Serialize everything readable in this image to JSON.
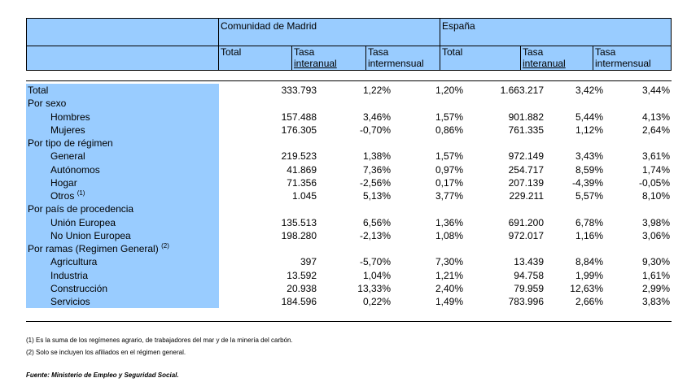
{
  "header": {
    "madrid": "Comunidad de Madrid",
    "espana": "España",
    "cols": {
      "total": "Total",
      "tasa": "Tasa",
      "interanual": "interanual",
      "intermensual": "intermensual"
    }
  },
  "rows": [
    {
      "label": "Total",
      "sub": false,
      "vals": [
        "333.793",
        "1,22%",
        "1,20%",
        "1.663.217",
        "3,42%",
        "3,44%"
      ]
    },
    {
      "label": "Por sexo",
      "sub": false,
      "vals": [
        "",
        "",
        "",
        "",
        "",
        ""
      ]
    },
    {
      "label": "Hombres",
      "sub": true,
      "vals": [
        "157.488",
        "3,46%",
        "1,57%",
        "901.882",
        "5,44%",
        "4,13%"
      ]
    },
    {
      "label": "Mujeres",
      "sub": true,
      "vals": [
        "176.305",
        "-0,70%",
        "0,86%",
        "761.335",
        "1,12%",
        "2,64%"
      ]
    },
    {
      "label": "Por tipo de régimen",
      "sub": false,
      "vals": [
        "",
        "",
        "",
        "",
        "",
        ""
      ]
    },
    {
      "label": "General",
      "sub": true,
      "vals": [
        "219.523",
        "1,38%",
        "1,57%",
        "972.149",
        "3,43%",
        "3,61%"
      ]
    },
    {
      "label": "Autónomos",
      "sub": true,
      "vals": [
        "41.869",
        "7,36%",
        "0,97%",
        "254.717",
        "8,59%",
        "1,74%"
      ]
    },
    {
      "label": "Hogar",
      "sub": true,
      "vals": [
        "71.356",
        "-2,56%",
        "0,17%",
        "207.139",
        "-4,39%",
        "-0,05%"
      ]
    },
    {
      "label": "Otros",
      "sup": "(1)",
      "sub": true,
      "vals": [
        "1.045",
        "5,13%",
        "3,77%",
        "229.211",
        "5,57%",
        "8,10%"
      ]
    },
    {
      "label": "Por país de procedencia",
      "sub": false,
      "vals": [
        "",
        "",
        "",
        "",
        "",
        ""
      ]
    },
    {
      "label": "Unión Europea",
      "sub": true,
      "vals": [
        "135.513",
        "6,56%",
        "1,36%",
        "691.200",
        "6,78%",
        "3,98%"
      ]
    },
    {
      "label": "No Union Europea",
      "sub": true,
      "vals": [
        "198.280",
        "-2,13%",
        "1,08%",
        "972.017",
        "1,16%",
        "3,06%"
      ]
    },
    {
      "label": "Por ramas (Regimen General)",
      "sup": "(2)",
      "sub": false,
      "vals": [
        "",
        "",
        "",
        "",
        "",
        ""
      ]
    },
    {
      "label": "Agricultura",
      "sub": true,
      "vals": [
        "397",
        "-5,70%",
        "7,30%",
        "13.439",
        "8,84%",
        "9,30%"
      ]
    },
    {
      "label": "Industria",
      "sub": true,
      "vals": [
        "13.592",
        "1,04%",
        "1,21%",
        "94.758",
        "1,99%",
        "1,61%"
      ]
    },
    {
      "label": "Construcción",
      "sub": true,
      "vals": [
        "20.938",
        "13,33%",
        "2,40%",
        "79.959",
        "12,63%",
        "2,99%"
      ]
    },
    {
      "label": "Servicios",
      "sub": true,
      "vals": [
        "184.596",
        "0,22%",
        "1,49%",
        "783.996",
        "2,66%",
        "3,83%"
      ]
    }
  ],
  "notes": [
    "(1) Es la suma de los regímenes  agrario, de trabajadores del mar y de la minería del carbón.",
    "(2) Solo se incluyen los afiliados en el régimen general."
  ],
  "source": "Fuente: Ministerio de Empleo y Seguridad Social."
}
